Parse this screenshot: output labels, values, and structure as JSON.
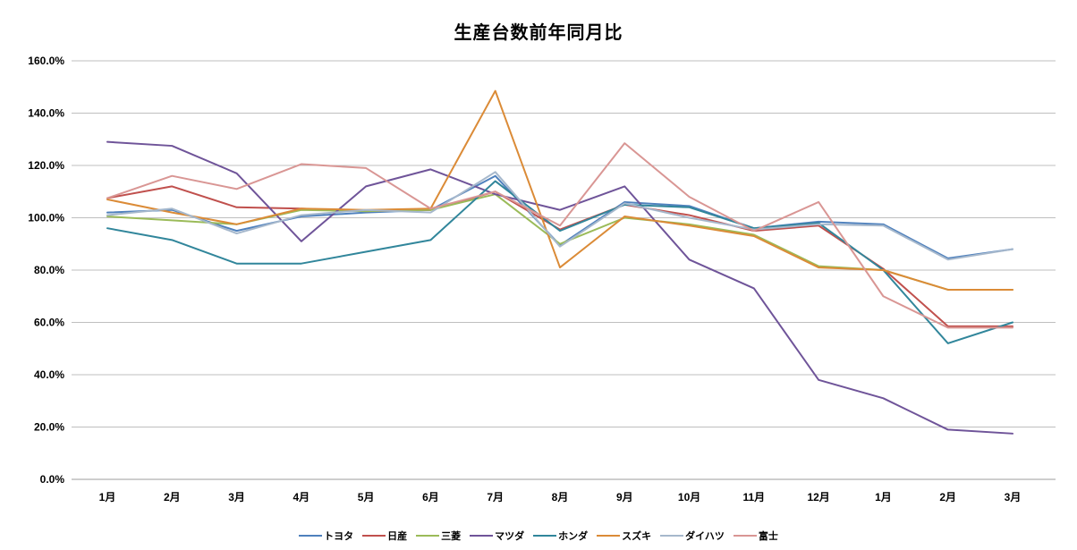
{
  "chart_data": {
    "type": "line",
    "title": "生産台数前年同月比",
    "categories": [
      "1月",
      "2月",
      "3月",
      "4月",
      "5月",
      "6月",
      "7月",
      "8月",
      "9月",
      "10月",
      "11月",
      "12月",
      "1月",
      "2月",
      "3月"
    ],
    "series": [
      {
        "name": "トヨタ",
        "color": "#4F81BD",
        "values": [
          102,
          103,
          95,
          100.5,
          102,
          103,
          116,
          89.5,
          106,
          104.5,
          96,
          98.5,
          97.5,
          84.5,
          88
        ]
      },
      {
        "name": "日産",
        "color": "#C0504D",
        "values": [
          107.5,
          112,
          104,
          103.5,
          102.5,
          103,
          110,
          95.5,
          105,
          101,
          95,
          97,
          80.5,
          58.5,
          58.5
        ]
      },
      {
        "name": "三菱",
        "color": "#9BBB59",
        "values": [
          100.5,
          99,
          97.5,
          103,
          102.5,
          103,
          109,
          90,
          100,
          97.5,
          93.5,
          81.5,
          80,
          72.5,
          72.5
        ]
      },
      {
        "name": "マツダ",
        "color": "#6F5499",
        "values": [
          129,
          127.5,
          117,
          91,
          112,
          118.5,
          109,
          103,
          112,
          84,
          73,
          38,
          31,
          19,
          17.5
        ]
      },
      {
        "name": "ホンダ",
        "color": "#31869B",
        "values": [
          96,
          91.5,
          82.5,
          82.5,
          87,
          91.5,
          114,
          95,
          105,
          104,
          96,
          98,
          80,
          52,
          60
        ]
      },
      {
        "name": "スズキ",
        "color": "#DB8B37",
        "values": [
          107,
          102,
          97.5,
          103.5,
          103,
          103.5,
          148.5,
          81,
          100.5,
          97,
          93,
          81,
          80,
          72.5,
          72.5
        ]
      },
      {
        "name": "ダイハツ",
        "color": "#A6B8CC",
        "values": [
          101,
          103.5,
          94,
          101,
          103,
          102,
          117.5,
          89,
          105.5,
          100,
          95.5,
          97.5,
          97,
          84,
          88
        ]
      },
      {
        "name": "富士",
        "color": "#D99694",
        "values": [
          107.5,
          116,
          111,
          120.5,
          119,
          103.5,
          110,
          97,
          128.5,
          108,
          95,
          106,
          70,
          58,
          58
        ]
      }
    ],
    "ylim": [
      0,
      160
    ],
    "ytick_step": 20,
    "yticks": [
      "0.0%",
      "20.0%",
      "40.0%",
      "60.0%",
      "80.0%",
      "100.0%",
      "120.0%",
      "140.0%",
      "160.0%"
    ],
    "grid": true,
    "legend_position": "bottom",
    "gridline_color": "#BFBFBF",
    "axis_label_color": "#000000"
  }
}
